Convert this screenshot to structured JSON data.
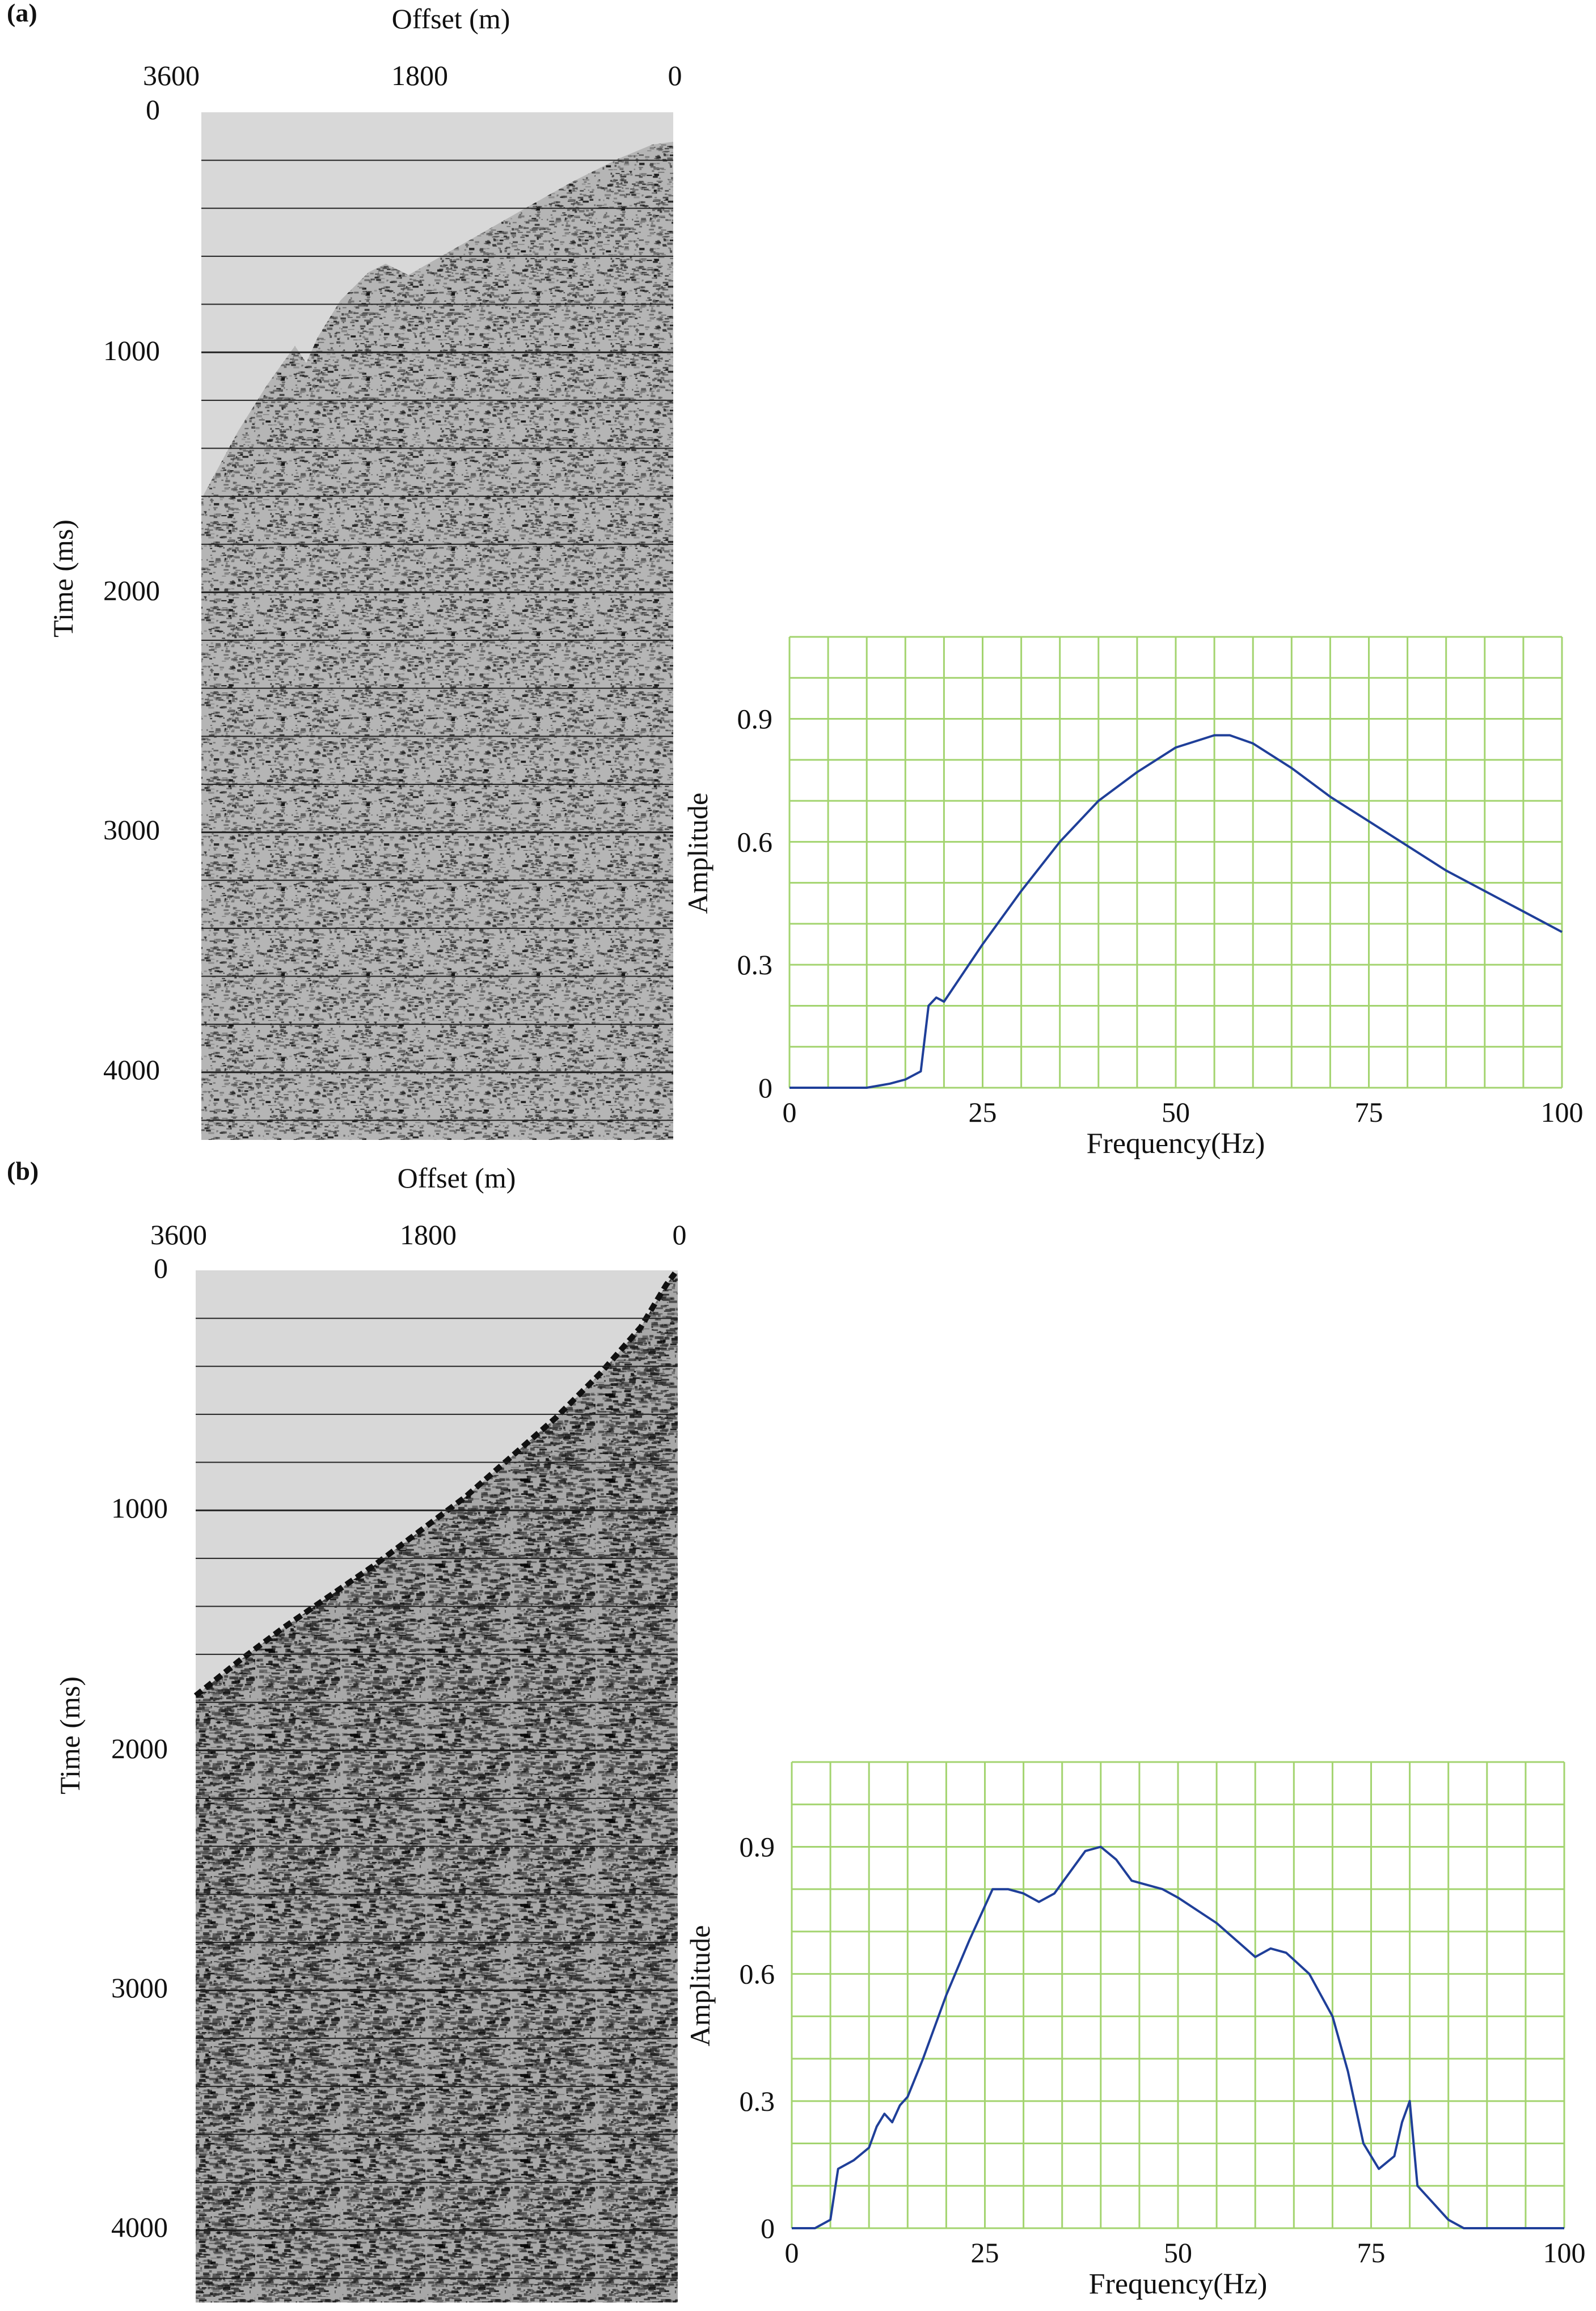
{
  "panels": [
    {
      "label": "(a)",
      "gather": {
        "title": "Offset (m)",
        "y_label": "Time (ms)",
        "x_ticks": [
          "3600",
          "1800",
          "0"
        ],
        "y_ticks": [
          "0",
          "1000",
          "2000",
          "3000",
          "4000"
        ]
      }
    },
    {
      "label": "(b)",
      "gather": {
        "title": "Offset (m)",
        "y_label": "Time (ms)",
        "x_ticks": [
          "3600",
          "1800",
          "0"
        ],
        "y_ticks": [
          "0",
          "1000",
          "2000",
          "3000",
          "4000"
        ]
      }
    }
  ],
  "chart_data": [
    {
      "type": "line",
      "panel": "(a)",
      "xlabel": "Frequency(Hz)",
      "ylabel": "Amplitude",
      "xlim": [
        0,
        100
      ],
      "ylim": [
        0,
        1.1
      ],
      "x_ticks": [
        "0",
        "25",
        "50",
        "75",
        "100"
      ],
      "y_ticks": [
        "0",
        "0.3",
        "0.6",
        "0.9"
      ],
      "grid": true,
      "grid_color": "#a3d46f",
      "line_color": "#1f3f99",
      "x": [
        0,
        5,
        10,
        13,
        15,
        17,
        18,
        19,
        20,
        25,
        30,
        35,
        40,
        45,
        50,
        55,
        57,
        60,
        65,
        70,
        75,
        80,
        85,
        90,
        95,
        100
      ],
      "y": [
        0,
        0,
        0,
        0.01,
        0.02,
        0.04,
        0.2,
        0.22,
        0.21,
        0.35,
        0.48,
        0.6,
        0.7,
        0.77,
        0.83,
        0.86,
        0.86,
        0.84,
        0.78,
        0.71,
        0.65,
        0.59,
        0.53,
        0.48,
        0.43,
        0.38
      ]
    },
    {
      "type": "line",
      "panel": "(b)",
      "xlabel": "Frequency(Hz)",
      "ylabel": "Amplitude",
      "xlim": [
        0,
        100
      ],
      "ylim": [
        0,
        1.1
      ],
      "x_ticks": [
        "0",
        "25",
        "50",
        "75",
        "100"
      ],
      "y_ticks": [
        "0",
        "0.3",
        "0.6",
        "0.9"
      ],
      "grid": true,
      "grid_color": "#a3d46f",
      "line_color": "#1f3f99",
      "x": [
        0,
        3,
        5,
        6,
        8,
        10,
        11,
        12,
        13,
        14,
        15,
        17,
        20,
        23,
        26,
        28,
        30,
        32,
        34,
        36,
        38,
        40,
        42,
        44,
        46,
        48,
        50,
        55,
        60,
        62,
        64,
        67,
        70,
        72,
        74,
        76,
        78,
        79,
        80,
        81,
        83,
        85,
        87,
        90,
        95,
        100
      ],
      "y": [
        0,
        0,
        0.02,
        0.14,
        0.16,
        0.19,
        0.24,
        0.27,
        0.25,
        0.29,
        0.31,
        0.4,
        0.55,
        0.68,
        0.8,
        0.8,
        0.79,
        0.77,
        0.79,
        0.84,
        0.89,
        0.9,
        0.87,
        0.82,
        0.81,
        0.8,
        0.78,
        0.72,
        0.64,
        0.66,
        0.65,
        0.6,
        0.5,
        0.37,
        0.2,
        0.14,
        0.17,
        0.25,
        0.3,
        0.1,
        0.06,
        0.02,
        0,
        0,
        0,
        0
      ]
    }
  ]
}
